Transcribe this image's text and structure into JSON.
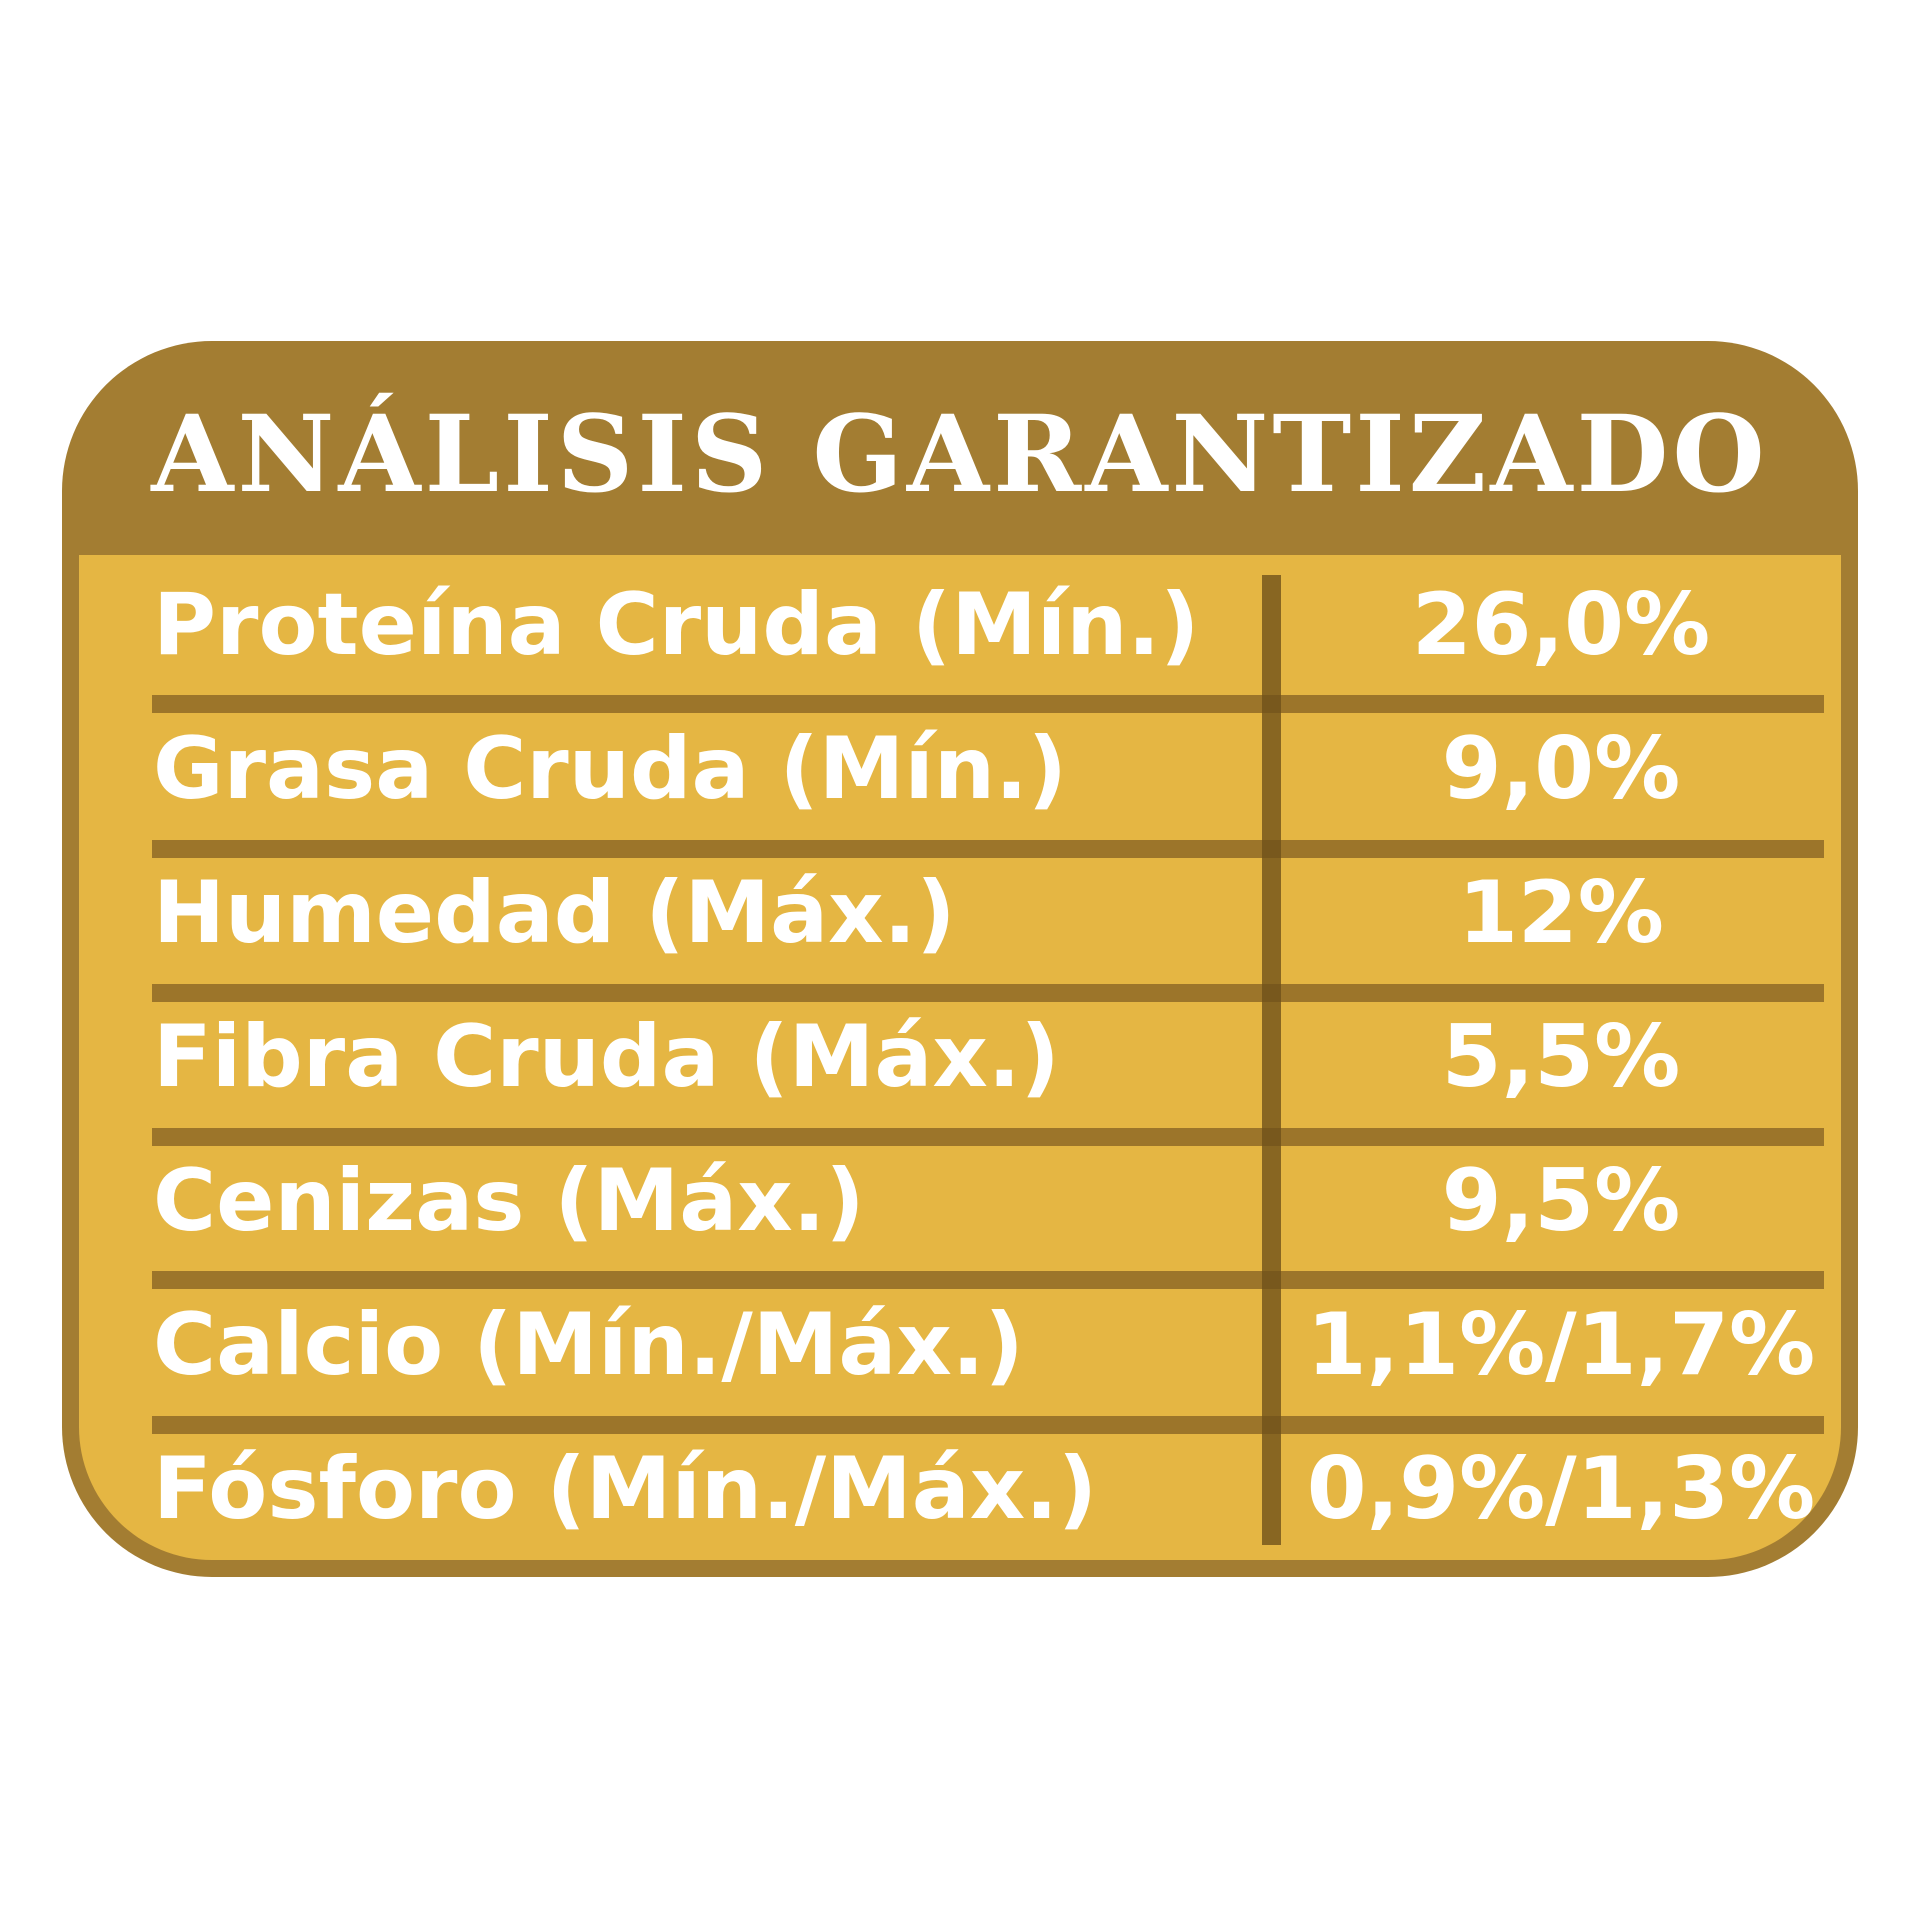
{
  "title": "ANÁLISIS GARANTIZADO",
  "rows": [
    {
      "label": "Proteína Cruda (Mín.)",
      "value": "26,0%"
    },
    {
      "label": "Grasa Cruda (Mín.)",
      "value": "9,0%"
    },
    {
      "label": "Humedad (Máx.)",
      "value": "12%"
    },
    {
      "label": "Fibra Cruda (Máx.)",
      "value": "5,5%"
    },
    {
      "label": "Cenizas (Máx.)",
      "value": "9,5%"
    },
    {
      "label": "Calcio (Mín./Máx.)",
      "value": "1,1%/1,7%"
    },
    {
      "label": "Fósforo (Mín./Máx.)",
      "value": "0,9%/1,3%"
    }
  ],
  "colors": {
    "header": "#a37d32",
    "body": "#e5b643",
    "text": "#ffffff",
    "rule": "#967028"
  }
}
